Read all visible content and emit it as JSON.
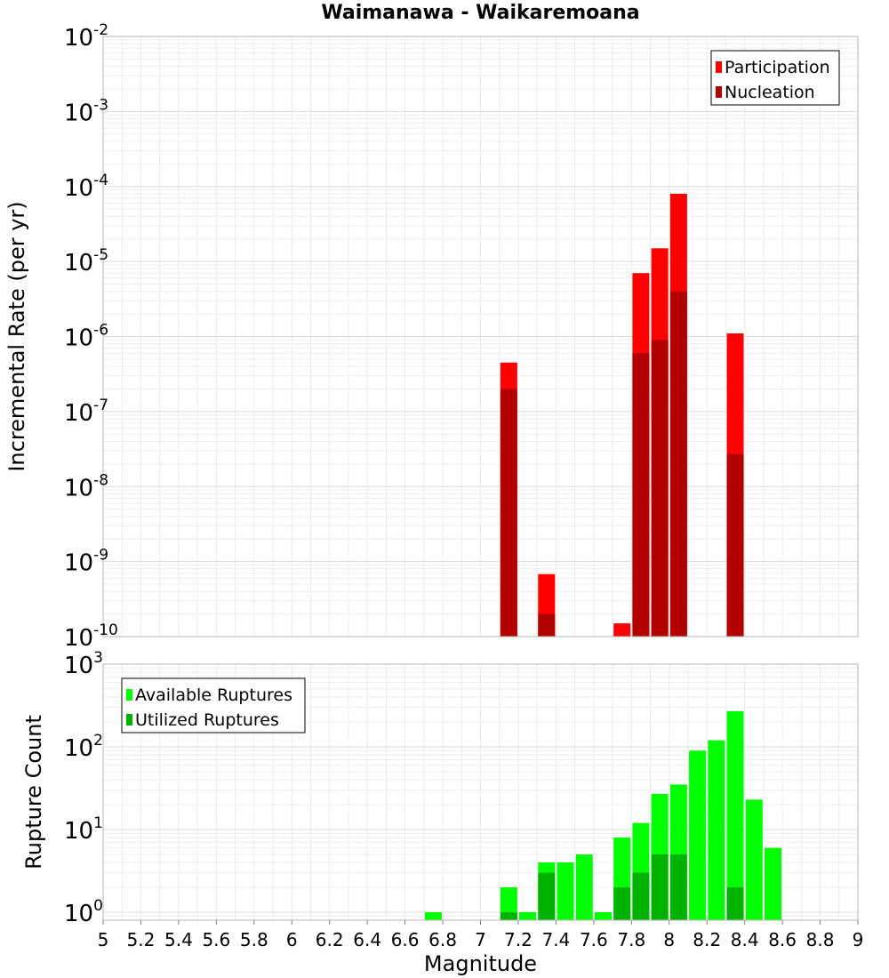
{
  "title": "Waimanawa - Waikaremoana",
  "chart_data": [
    {
      "type": "bar",
      "panel": "rate",
      "xlabel": "",
      "ylabel": "Incremental Rate (per yr)",
      "y_scale": "log",
      "ylim": [
        1e-10,
        0.01
      ],
      "xlim": [
        5,
        9
      ],
      "grid": true,
      "legend_position": "top-right",
      "y_ticks": [
        {
          "base": "10",
          "exp": "-10"
        },
        {
          "base": "10",
          "exp": "-9"
        },
        {
          "base": "10",
          "exp": "-8"
        },
        {
          "base": "10",
          "exp": "-7"
        },
        {
          "base": "10",
          "exp": "-6"
        },
        {
          "base": "10",
          "exp": "-5"
        },
        {
          "base": "10",
          "exp": "-4"
        },
        {
          "base": "10",
          "exp": "-3"
        },
        {
          "base": "10",
          "exp": "-2"
        }
      ],
      "series": [
        {
          "name": "Participation",
          "color": "#ff0000",
          "points": [
            {
              "x": 7.15,
              "y": 4.5e-07
            },
            {
              "x": 7.35,
              "y": 6.8e-10
            },
            {
              "x": 7.75,
              "y": 1.5e-10
            },
            {
              "x": 7.85,
              "y": 7e-06
            },
            {
              "x": 7.95,
              "y": 1.5e-05
            },
            {
              "x": 8.05,
              "y": 8e-05
            },
            {
              "x": 8.35,
              "y": 1.1e-06
            }
          ]
        },
        {
          "name": "Nucleation",
          "color": "#b20000",
          "points": [
            {
              "x": 7.15,
              "y": 2e-07
            },
            {
              "x": 7.35,
              "y": 2e-10
            },
            {
              "x": 7.85,
              "y": 6e-07
            },
            {
              "x": 7.95,
              "y": 9e-07
            },
            {
              "x": 8.05,
              "y": 4e-06
            },
            {
              "x": 8.35,
              "y": 2.7e-08
            }
          ]
        }
      ]
    },
    {
      "type": "bar",
      "panel": "count",
      "xlabel": "Magnitude",
      "ylabel": "Rupture Count",
      "y_scale": "log",
      "ylim": [
        0.8,
        1000
      ],
      "xlim": [
        5,
        9
      ],
      "grid": true,
      "legend_position": "top-left",
      "x_ticks": [
        "5",
        "5.2",
        "5.4",
        "5.6",
        "5.8",
        "6",
        "6.2",
        "6.4",
        "6.6",
        "6.8",
        "7",
        "7.2",
        "7.4",
        "7.6",
        "7.8",
        "8",
        "8.2",
        "8.4",
        "8.6",
        "8.8",
        "9"
      ],
      "y_ticks": [
        {
          "base": "10",
          "exp": "0"
        },
        {
          "base": "10",
          "exp": "1"
        },
        {
          "base": "10",
          "exp": "2"
        },
        {
          "base": "10",
          "exp": "3"
        }
      ],
      "series": [
        {
          "name": "Available Ruptures",
          "color": "#00ff00",
          "points": [
            {
              "x": 6.75,
              "y": 1
            },
            {
              "x": 7.15,
              "y": 2
            },
            {
              "x": 7.25,
              "y": 1
            },
            {
              "x": 7.35,
              "y": 4
            },
            {
              "x": 7.45,
              "y": 4
            },
            {
              "x": 7.55,
              "y": 5
            },
            {
              "x": 7.65,
              "y": 1
            },
            {
              "x": 7.75,
              "y": 8
            },
            {
              "x": 7.85,
              "y": 12
            },
            {
              "x": 7.95,
              "y": 27
            },
            {
              "x": 8.05,
              "y": 35
            },
            {
              "x": 8.15,
              "y": 90
            },
            {
              "x": 8.25,
              "y": 120
            },
            {
              "x": 8.35,
              "y": 270
            },
            {
              "x": 8.45,
              "y": 23
            },
            {
              "x": 8.55,
              "y": 6
            }
          ]
        },
        {
          "name": "Utilized Ruptures",
          "color": "#00b200",
          "points": [
            {
              "x": 7.15,
              "y": 1
            },
            {
              "x": 7.35,
              "y": 3
            },
            {
              "x": 7.75,
              "y": 2
            },
            {
              "x": 7.85,
              "y": 3
            },
            {
              "x": 7.95,
              "y": 5
            },
            {
              "x": 8.05,
              "y": 5
            },
            {
              "x": 8.35,
              "y": 2
            }
          ]
        }
      ]
    }
  ]
}
